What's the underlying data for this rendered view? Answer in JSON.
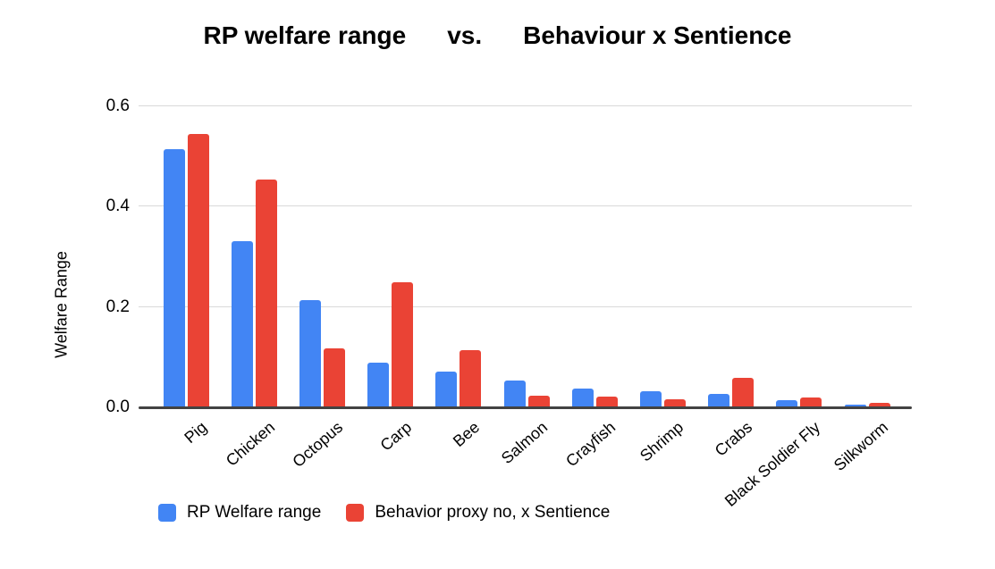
{
  "title": {
    "left": "RP welfare range",
    "separator": "vs.",
    "right": "Behaviour x Sentience"
  },
  "chart_data": {
    "type": "bar",
    "title": "RP welfare range vs. Behaviour x Sentience",
    "xlabel": "",
    "ylabel": "Welfare Range",
    "ylim": [
      0,
      0.6
    ],
    "ytick_step": 0.2,
    "yticks": [
      "0.0",
      "0.2",
      "0.4",
      "0.6"
    ],
    "grid": true,
    "legend_position": "bottom",
    "categories": [
      "Pig",
      "Chicken",
      "Octopus",
      "Carp",
      "Bee",
      "Salmon",
      "Crayfish",
      "Shrimp",
      "Crabs",
      "Black Soldier Fly",
      "Silkworm"
    ],
    "series": [
      {
        "name": "RP Welfare range",
        "color": "#4285F4",
        "values": [
          0.512,
          0.33,
          0.212,
          0.088,
          0.07,
          0.051,
          0.036,
          0.031,
          0.025,
          0.013,
          0.004
        ]
      },
      {
        "name": "Behavior proxy no, x Sentience",
        "color": "#EA4335",
        "values": [
          0.543,
          0.452,
          0.116,
          0.248,
          0.113,
          0.022,
          0.019,
          0.015,
          0.057,
          0.018,
          0.008
        ]
      }
    ]
  },
  "colors": {
    "background": "#ffffff",
    "gridline": "#d9d9d9",
    "baseline": "#424242",
    "text": "#000000",
    "series_blue": "#4285F4",
    "series_red": "#EA4335"
  }
}
